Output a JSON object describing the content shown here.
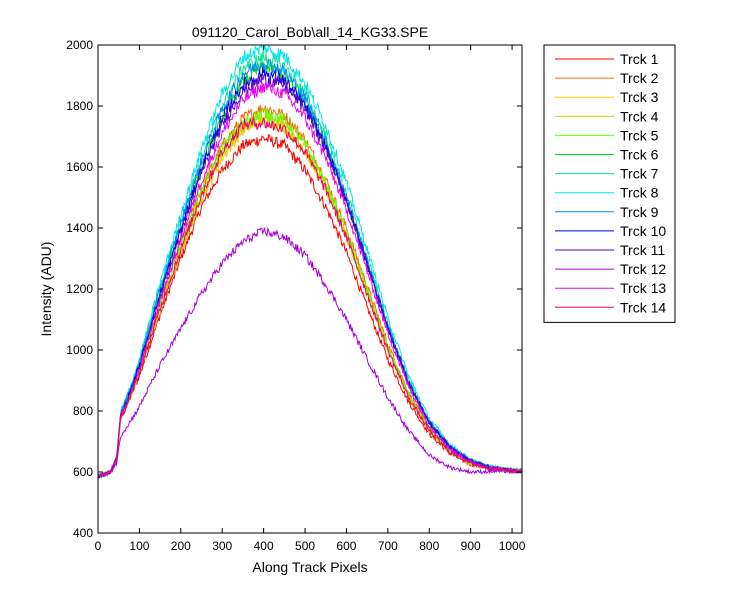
{
  "chart_data": {
    "type": "line",
    "title": "091120_Carol_Bob\\all_14_KG33.SPE",
    "xlabel": "Along Track Pixels",
    "ylabel": "Intensity (ADU)",
    "xlim": [
      0,
      1024
    ],
    "ylim": [
      400,
      2000
    ],
    "xticks": [
      0,
      100,
      200,
      300,
      400,
      500,
      600,
      700,
      800,
      900,
      1000
    ],
    "yticks": [
      400,
      600,
      800,
      1000,
      1200,
      1400,
      1600,
      1800,
      2000
    ],
    "grid": false,
    "legend_position": "outside-top-right",
    "x": [
      0,
      30,
      45,
      55,
      60,
      80,
      100,
      150,
      200,
      250,
      300,
      350,
      400,
      450,
      500,
      550,
      600,
      650,
      700,
      750,
      800,
      850,
      900,
      950,
      1000,
      1024
    ],
    "series": [
      {
        "name": "Trck 1",
        "color": "#ff0000",
        "values": [
          585,
          600,
          640,
          780,
          790,
          850,
          915,
          1115,
          1300,
          1470,
          1590,
          1670,
          1695,
          1670,
          1590,
          1470,
          1320,
          1140,
          970,
          830,
          725,
          660,
          625,
          610,
          603,
          603
        ]
      },
      {
        "name": "Trck 2",
        "color": "#ff6600",
        "values": [
          585,
          600,
          640,
          785,
          795,
          860,
          930,
          1150,
          1350,
          1530,
          1670,
          1760,
          1795,
          1770,
          1690,
          1560,
          1400,
          1210,
          1020,
          860,
          745,
          670,
          630,
          612,
          604,
          603
        ]
      },
      {
        "name": "Trck 3",
        "color": "#ffcc00",
        "values": [
          585,
          600,
          640,
          780,
          790,
          855,
          925,
          1130,
          1320,
          1500,
          1630,
          1720,
          1755,
          1730,
          1650,
          1525,
          1370,
          1185,
          1000,
          845,
          735,
          665,
          628,
          611,
          604,
          603
        ]
      },
      {
        "name": "Trck 4",
        "color": "#cccc00",
        "values": [
          585,
          600,
          640,
          780,
          790,
          855,
          925,
          1135,
          1325,
          1505,
          1640,
          1730,
          1765,
          1740,
          1660,
          1530,
          1375,
          1190,
          1005,
          850,
          738,
          667,
          628,
          611,
          604,
          603
        ]
      },
      {
        "name": "Trck 5",
        "color": "#66ff00",
        "values": [
          585,
          600,
          640,
          785,
          795,
          860,
          935,
          1150,
          1345,
          1525,
          1660,
          1745,
          1780,
          1755,
          1675,
          1545,
          1385,
          1200,
          1010,
          852,
          740,
          668,
          629,
          611,
          604,
          603
        ]
      },
      {
        "name": "Trck 6",
        "color": "#00dd00",
        "values": [
          585,
          600,
          645,
          790,
          805,
          875,
          955,
          1190,
          1400,
          1600,
          1760,
          1880,
          1930,
          1900,
          1810,
          1670,
          1490,
          1280,
          1070,
          890,
          760,
          680,
          635,
          614,
          605,
          603
        ]
      },
      {
        "name": "Trck 7",
        "color": "#00e68a",
        "values": [
          585,
          600,
          645,
          795,
          810,
          880,
          960,
          1205,
          1425,
          1630,
          1800,
          1925,
          1960,
          1930,
          1840,
          1700,
          1515,
          1300,
          1085,
          900,
          765,
          683,
          636,
          614,
          605,
          603
        ]
      },
      {
        "name": "Trck 8",
        "color": "#00e6e6",
        "values": [
          585,
          600,
          645,
          800,
          815,
          885,
          970,
          1220,
          1445,
          1660,
          1840,
          1960,
          1990,
          1965,
          1875,
          1735,
          1550,
          1330,
          1105,
          915,
          775,
          690,
          640,
          616,
          606,
          603
        ]
      },
      {
        "name": "Trck 9",
        "color": "#0088ff",
        "values": [
          585,
          600,
          645,
          795,
          808,
          878,
          958,
          1200,
          1415,
          1620,
          1790,
          1905,
          1945,
          1915,
          1825,
          1685,
          1505,
          1290,
          1078,
          895,
          763,
          682,
          636,
          614,
          605,
          603
        ]
      },
      {
        "name": "Trck 10",
        "color": "#0000ee",
        "values": [
          585,
          600,
          645,
          790,
          802,
          870,
          950,
          1185,
          1395,
          1595,
          1760,
          1870,
          1910,
          1885,
          1800,
          1665,
          1490,
          1280,
          1070,
          890,
          760,
          680,
          635,
          613,
          605,
          603
        ]
      },
      {
        "name": "Trck 11",
        "color": "#5500cc",
        "values": [
          585,
          600,
          645,
          790,
          800,
          865,
          945,
          1175,
          1380,
          1580,
          1740,
          1850,
          1890,
          1870,
          1790,
          1660,
          1490,
          1285,
          1075,
          895,
          763,
          682,
          636,
          614,
          605,
          603
        ]
      },
      {
        "name": "Trck 12",
        "color": "#aa00dd",
        "values": [
          585,
          598,
          630,
          720,
          730,
          770,
          815,
          950,
          1070,
          1185,
          1285,
          1355,
          1390,
          1370,
          1310,
          1215,
          1100,
          970,
          845,
          735,
          655,
          615,
          600,
          602,
          603,
          603
        ]
      },
      {
        "name": "Trck 13",
        "color": "#ee00ee",
        "values": [
          585,
          600,
          642,
          785,
          795,
          860,
          935,
          1160,
          1365,
          1555,
          1710,
          1820,
          1865,
          1840,
          1760,
          1630,
          1460,
          1260,
          1055,
          880,
          752,
          675,
          632,
          612,
          604,
          603
        ]
      },
      {
        "name": "Trck 14",
        "color": "#ee0066",
        "values": [
          585,
          600,
          640,
          780,
          790,
          852,
          925,
          1135,
          1330,
          1510,
          1650,
          1740,
          1745,
          1725,
          1650,
          1525,
          1370,
          1185,
          1000,
          845,
          735,
          665,
          628,
          611,
          604,
          603
        ]
      }
    ]
  }
}
